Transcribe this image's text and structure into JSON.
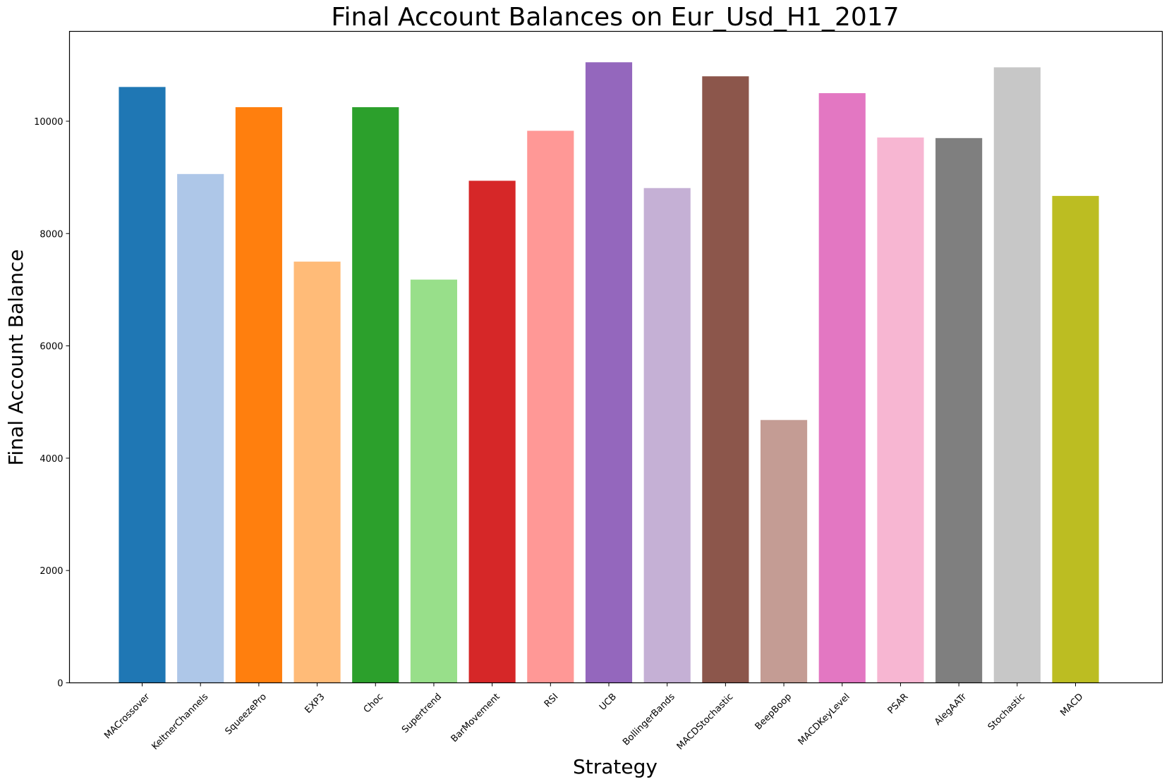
{
  "chart_data": {
    "type": "bar",
    "title": "Final Account Balances on Eur_Usd_H1_2017",
    "xlabel": "Strategy",
    "ylabel": "Final Account Balance",
    "ylim": [
      0,
      11600
    ],
    "yticks": [
      0,
      2000,
      4000,
      6000,
      8000,
      10000
    ],
    "grid": false,
    "categories": [
      "MACrossover",
      "KeltnerChannels",
      "SqueezePro",
      "EXP3",
      "Choc",
      "Supertrend",
      "BarMovement",
      "RSI",
      "UCB",
      "BollingerBands",
      "MACDStochastic",
      "BeepBoop",
      "MACDKeyLevel",
      "PSAR",
      "AlegAATr",
      "Stochastic",
      "MACD"
    ],
    "values": [
      10610,
      9060,
      10250,
      7500,
      10250,
      7180,
      8940,
      9830,
      11050,
      8810,
      10800,
      4680,
      10500,
      9710,
      9700,
      10960,
      8670
    ],
    "colors": [
      "#1f77b4",
      "#aec7e8",
      "#ff7f0e",
      "#ffbb78",
      "#2ca02c",
      "#98df8a",
      "#d62728",
      "#ff9896",
      "#9467bd",
      "#c5b0d5",
      "#8c564b",
      "#c49c94",
      "#e377c2",
      "#f7b6d2",
      "#7f7f7f",
      "#c7c7c7",
      "#bcbd22"
    ]
  }
}
